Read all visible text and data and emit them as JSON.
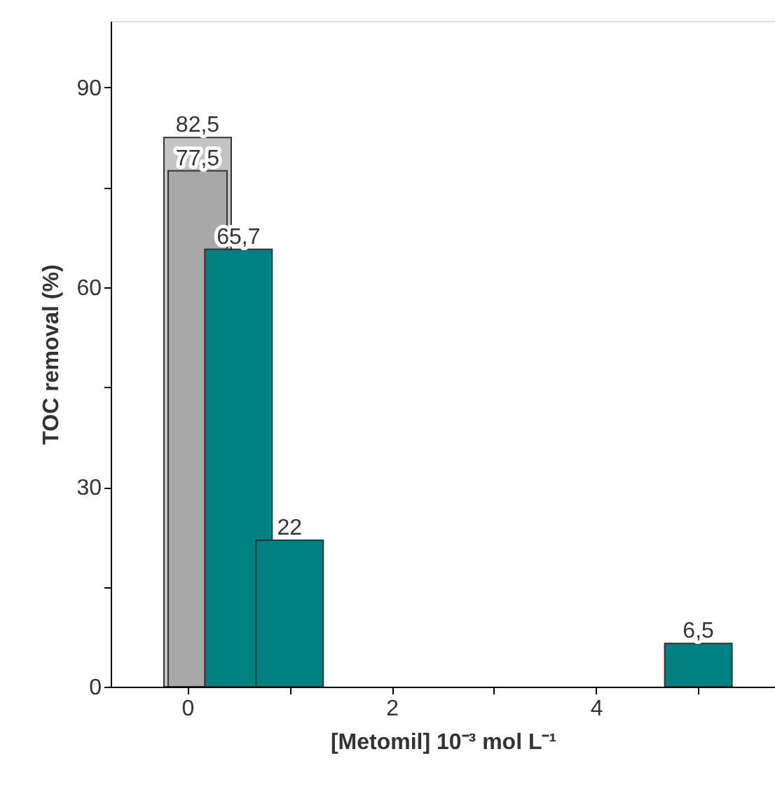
{
  "chart_data": {
    "type": "bar",
    "xlabel": "[Metomil] 10⁻³ mol L⁻¹",
    "ylabel": "TOC removal (%)",
    "xlim": [
      -0.75,
      5.75
    ],
    "xticks": [
      0,
      {
        "value": 1,
        "label": null
      },
      2,
      {
        "value": 3,
        "label": null
      },
      4,
      {
        "value": 5,
        "label": null
      }
    ],
    "ylim": [
      0,
      100
    ],
    "yticks": [
      0,
      {
        "value": 15,
        "label": null
      },
      30,
      {
        "value": 45,
        "label": null
      },
      60,
      {
        "value": 75,
        "label": null
      },
      90
    ],
    "grid": false,
    "series": [
      {
        "x": [
          0.1
        ],
        "values": [
          82.5
        ],
        "color": "#c4c4c4",
        "value_labels": [
          "82,5"
        ]
      },
      {
        "x": [
          0.1
        ],
        "values": [
          77.5
        ],
        "color": "#a8a8a8",
        "value_labels": [
          "77,5"
        ]
      },
      {
        "x": [
          0.5,
          1,
          5
        ],
        "values": [
          65.7,
          22,
          6.5
        ],
        "color": "#008080",
        "value_labels": [
          "65,7",
          "22",
          "6,5"
        ]
      }
    ]
  }
}
